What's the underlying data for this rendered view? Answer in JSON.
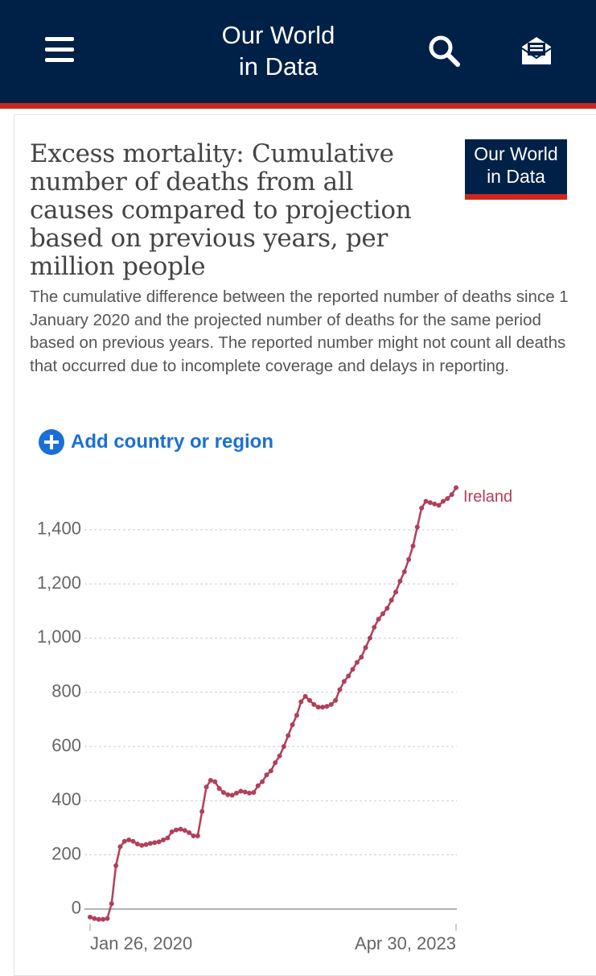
{
  "header": {
    "logo": [
      "Our World",
      "in Data"
    ]
  },
  "card": {
    "logo": [
      "Our World",
      "in Data"
    ],
    "add_button": "Add country or region"
  },
  "chart_data": {
    "type": "line",
    "title": "Excess mortality: Cumulative number of deaths from all causes compared to projection based on previous years, per million people",
    "subtitle": "The cumulative difference between the reported number of deaths since 1 January 2020 and the projected number of deaths for the same period based on previous years. The reported number might not count all deaths that occurred due to incomplete coverage and delays in reporting.",
    "categories": [
      "Jan 26, 2020",
      null,
      null,
      null,
      null,
      null,
      null,
      null,
      null,
      null,
      null,
      null,
      null,
      null,
      null,
      null,
      null,
      null,
      null,
      null,
      null,
      null,
      null,
      null,
      null,
      null,
      null,
      null,
      null,
      null,
      null,
      null,
      null,
      null,
      null,
      null,
      null,
      null,
      null,
      null,
      null,
      null,
      null,
      null,
      null,
      null,
      null,
      null,
      null,
      null,
      null,
      null,
      null,
      null,
      null,
      null,
      null,
      null,
      null,
      null,
      null,
      null,
      null,
      null,
      null,
      null,
      null,
      null,
      null,
      null,
      null,
      null,
      null,
      null,
      null,
      null,
      null,
      null,
      null,
      null,
      null,
      null,
      null,
      null,
      null,
      "Apr 30, 2023"
    ],
    "series": [
      {
        "name": "Ireland",
        "color": "#b13f5b",
        "values": [
          -30,
          -35,
          -38,
          -38,
          -35,
          20,
          160,
          230,
          250,
          255,
          250,
          240,
          235,
          238,
          242,
          245,
          248,
          255,
          262,
          285,
          292,
          295,
          290,
          282,
          270,
          270,
          360,
          450,
          475,
          470,
          445,
          430,
          422,
          420,
          428,
          435,
          432,
          428,
          430,
          455,
          470,
          495,
          510,
          540,
          565,
          600,
          640,
          680,
          715,
          765,
          785,
          770,
          755,
          745,
          745,
          748,
          755,
          770,
          810,
          840,
          860,
          885,
          910,
          930,
          965,
          1000,
          1040,
          1070,
          1090,
          1110,
          1140,
          1170,
          1210,
          1245,
          1290,
          1340,
          1410,
          1480,
          1505,
          1500,
          1495,
          1490,
          1505,
          1515,
          1530,
          1555
        ]
      }
    ],
    "ylim": [
      -60,
      1560
    ],
    "yticks": [
      0,
      200,
      400,
      600,
      800,
      {
        "value": 1000,
        "label": "1,000"
      },
      {
        "value": 1200,
        "label": "1,200"
      },
      {
        "value": 1400,
        "label": "1,400"
      }
    ],
    "grid": true
  }
}
